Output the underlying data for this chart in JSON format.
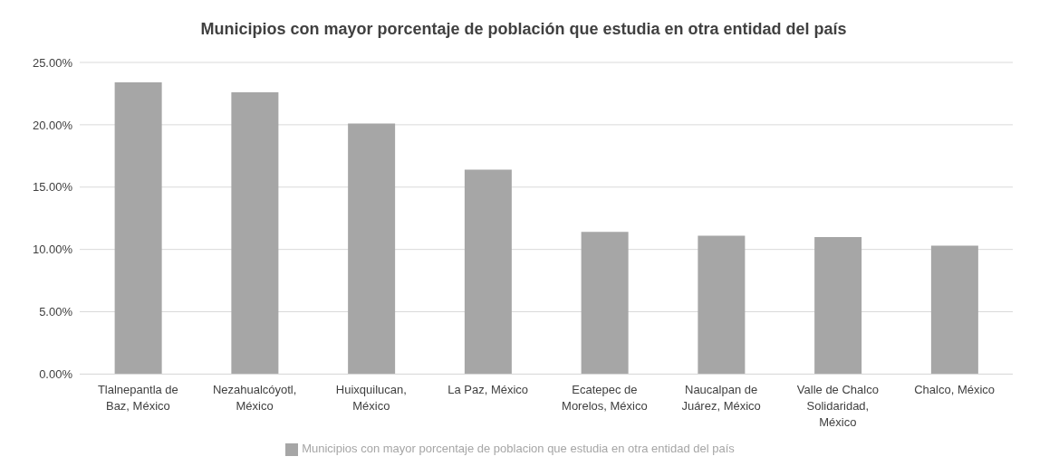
{
  "chart_data": {
    "type": "bar",
    "title": "Municipios con mayor porcentaje de población que estudia en otra entidad del país",
    "categories": [
      "Tlalnepantla de Baz, México",
      "Nezahualcóyotl, México",
      "Huixquilucan, México",
      "La Paz, México",
      "Ecatepec de Morelos, México",
      "Naucalpan de Juárez, México",
      "Valle de Chalco Solidaridad, México",
      "Chalco, México"
    ],
    "series": [
      {
        "name": "Municipios con mayor porcentaje de poblacion que estudia en otra entidad del país",
        "color": "#a6a6a6",
        "values": [
          23.4,
          22.6,
          20.1,
          16.4,
          11.4,
          11.1,
          11.0,
          10.3
        ]
      }
    ],
    "ylim": [
      0,
      25
    ],
    "yticks": [
      {
        "value": 0,
        "label": "0.00%"
      },
      {
        "value": 5,
        "label": "5.00%"
      },
      {
        "value": 10,
        "label": "10.00%"
      },
      {
        "value": 15,
        "label": "15.00%"
      },
      {
        "value": 20,
        "label": "20.00%"
      },
      {
        "value": 25,
        "label": "25.00%"
      }
    ],
    "grid": "y",
    "legend": "bottom"
  }
}
